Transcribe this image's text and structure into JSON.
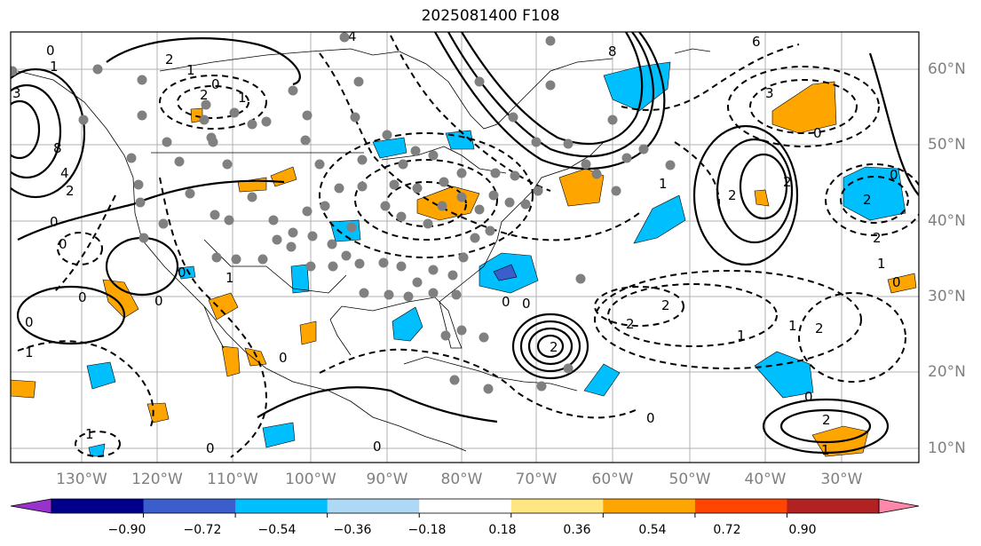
{
  "title": "2025081400 F108",
  "map": {
    "projection": "cylindrical",
    "lon_range": [
      -138,
      -17
    ],
    "lat_range": [
      8,
      65
    ],
    "grid": true
  },
  "axes": {
    "lon_labels": [
      "130°W",
      "120°W",
      "110°W",
      "100°W",
      "90°W",
      "80°W",
      "70°W",
      "60°W",
      "50°W",
      "40°W",
      "30°W"
    ],
    "lat_labels": [
      "60°N",
      "50°N",
      "40°N",
      "30°N",
      "20°N",
      "10°N"
    ]
  },
  "colorbar": {
    "ticks": [
      "−0.90",
      "−0.72",
      "−0.54",
      "−0.36",
      "−0.18",
      "0.18",
      "0.36",
      "0.54",
      "0.72",
      "0.90"
    ],
    "colors": [
      "#9932CC",
      "#00008B",
      "#3A5FCD",
      "#00BFFF",
      "#ADD8F6",
      "#FFFFFF",
      "#FFE680",
      "#FFA500",
      "#FF4500",
      "#B22222",
      "#FF88AA"
    ]
  },
  "contour_labels": [
    "0",
    "1",
    "2",
    "3",
    "4",
    "6",
    "8",
    "-1",
    "-2",
    "-3",
    "-4",
    "-6"
  ],
  "station_color": "#808080"
}
